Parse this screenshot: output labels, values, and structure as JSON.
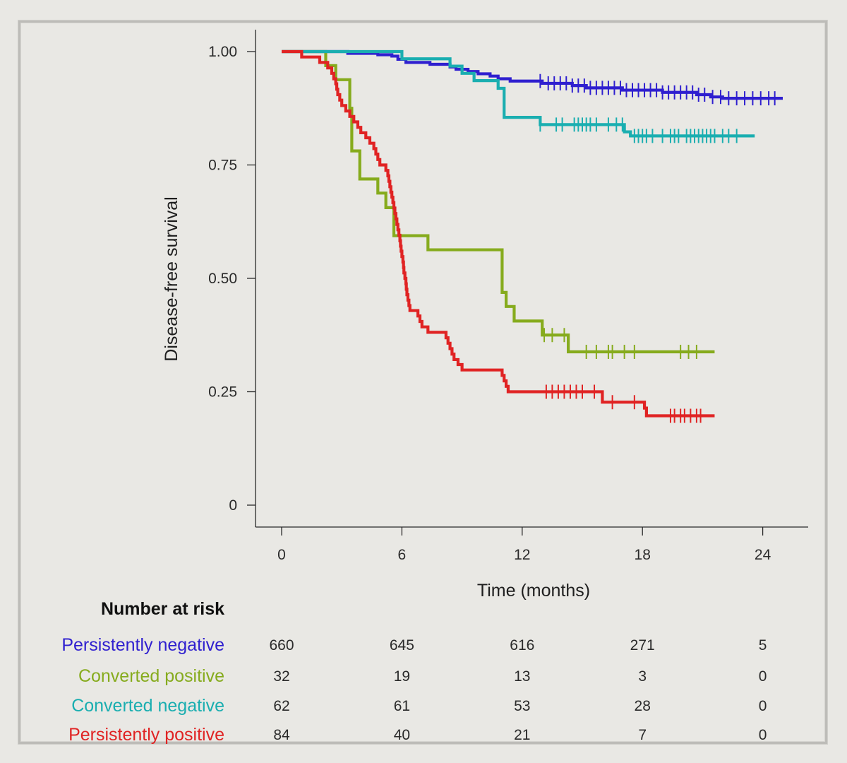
{
  "chart_data": {
    "type": "line",
    "step": true,
    "xlabel": "Time (months)",
    "ylabel": "Disease-free survival",
    "xlim": [
      -1,
      26
    ],
    "ylim": [
      -0.05,
      1.05
    ],
    "x_ticks": [
      0,
      6,
      12,
      18,
      24
    ],
    "x_tick_labels": [
      "0",
      "6",
      "12",
      "18",
      "24"
    ],
    "y_ticks": [
      0,
      0.25,
      0.5,
      0.75,
      1.0
    ],
    "y_tick_labels": [
      "0",
      "0.25",
      "0.50",
      "0.75",
      "1.00"
    ],
    "series": [
      {
        "name": "Persistently negative",
        "color": "#2f1fcf",
        "steps": [
          [
            0,
            1.0
          ],
          [
            3.3,
            0.996
          ],
          [
            4.8,
            0.993
          ],
          [
            5.5,
            0.99
          ],
          [
            5.8,
            0.983
          ],
          [
            6.2,
            0.976
          ],
          [
            7.4,
            0.972
          ],
          [
            8.4,
            0.966
          ],
          [
            8.7,
            0.961
          ],
          [
            9.3,
            0.956
          ],
          [
            9.8,
            0.951
          ],
          [
            10.4,
            0.946
          ],
          [
            10.8,
            0.94
          ],
          [
            11.4,
            0.935
          ],
          [
            13.0,
            0.93
          ],
          [
            14.5,
            0.925
          ],
          [
            15.2,
            0.92
          ],
          [
            17.0,
            0.915
          ],
          [
            19.0,
            0.91
          ],
          [
            20.7,
            0.905
          ],
          [
            21.4,
            0.9
          ],
          [
            22.0,
            0.897
          ],
          [
            25.0,
            0.897
          ]
        ],
        "censor_x": [
          12.9,
          13.3,
          13.6,
          13.9,
          14.2,
          14.5,
          14.8,
          15.1,
          15.4,
          15.7,
          16.0,
          16.3,
          16.6,
          16.9,
          17.2,
          17.5,
          17.8,
          18.1,
          18.4,
          18.7,
          19.0,
          19.3,
          19.6,
          19.9,
          20.2,
          20.5,
          20.8,
          21.1,
          21.5,
          21.9,
          22.3,
          22.7,
          23.1,
          23.5,
          23.9,
          24.3,
          24.6
        ]
      },
      {
        "name": "Converted positive",
        "color": "#86ab1d",
        "steps": [
          [
            0,
            1.0
          ],
          [
            2.2,
            0.969
          ],
          [
            2.7,
            0.938
          ],
          [
            3.4,
            0.875
          ],
          [
            3.5,
            0.781
          ],
          [
            3.9,
            0.719
          ],
          [
            4.8,
            0.688
          ],
          [
            5.2,
            0.656
          ],
          [
            5.6,
            0.594
          ],
          [
            7.3,
            0.563
          ],
          [
            11.0,
            0.469
          ],
          [
            11.2,
            0.438
          ],
          [
            11.6,
            0.406
          ],
          [
            13.0,
            0.375
          ],
          [
            14.3,
            0.338
          ],
          [
            21.6,
            0.338
          ]
        ],
        "censor_x": [
          13.1,
          13.5,
          14.1,
          15.2,
          15.7,
          16.3,
          16.5,
          17.1,
          17.6,
          19.9,
          20.3,
          20.7
        ]
      },
      {
        "name": "Converted negative",
        "color": "#1aaeb0",
        "steps": [
          [
            0,
            1.0
          ],
          [
            6.0,
            0.984
          ],
          [
            8.4,
            0.968
          ],
          [
            9.0,
            0.952
          ],
          [
            9.6,
            0.936
          ],
          [
            10.8,
            0.919
          ],
          [
            11.1,
            0.855
          ],
          [
            12.9,
            0.839
          ],
          [
            17.1,
            0.823
          ],
          [
            17.4,
            0.814
          ],
          [
            23.6,
            0.814
          ]
        ],
        "censor_x": [
          12.9,
          13.7,
          14.0,
          14.6,
          14.8,
          15.0,
          15.2,
          15.4,
          15.7,
          16.3,
          16.7,
          17.0,
          17.6,
          17.8,
          18.0,
          18.2,
          18.5,
          19.0,
          19.4,
          19.6,
          19.8,
          20.2,
          20.4,
          20.6,
          20.8,
          21.0,
          21.2,
          21.4,
          21.6,
          22.0,
          22.3,
          22.7
        ]
      },
      {
        "name": "Persistently positive",
        "color": "#e02323",
        "steps": [
          [
            0,
            1.0
          ],
          [
            1.0,
            0.988
          ],
          [
            1.9,
            0.976
          ],
          [
            2.3,
            0.964
          ],
          [
            2.5,
            0.952
          ],
          [
            2.6,
            0.94
          ],
          [
            2.7,
            0.929
          ],
          [
            2.75,
            0.917
          ],
          [
            2.8,
            0.905
          ],
          [
            2.9,
            0.893
          ],
          [
            3.0,
            0.881
          ],
          [
            3.2,
            0.869
          ],
          [
            3.4,
            0.857
          ],
          [
            3.6,
            0.845
          ],
          [
            3.8,
            0.833
          ],
          [
            3.95,
            0.821
          ],
          [
            4.2,
            0.81
          ],
          [
            4.4,
            0.798
          ],
          [
            4.6,
            0.786
          ],
          [
            4.7,
            0.774
          ],
          [
            4.8,
            0.762
          ],
          [
            4.9,
            0.75
          ],
          [
            5.2,
            0.738
          ],
          [
            5.3,
            0.726
          ],
          [
            5.35,
            0.714
          ],
          [
            5.4,
            0.702
          ],
          [
            5.45,
            0.69
          ],
          [
            5.5,
            0.679
          ],
          [
            5.55,
            0.667
          ],
          [
            5.6,
            0.655
          ],
          [
            5.65,
            0.643
          ],
          [
            5.7,
            0.631
          ],
          [
            5.75,
            0.619
          ],
          [
            5.8,
            0.607
          ],
          [
            5.85,
            0.595
          ],
          [
            5.9,
            0.583
          ],
          [
            5.93,
            0.571
          ],
          [
            5.96,
            0.56
          ],
          [
            6.0,
            0.548
          ],
          [
            6.05,
            0.536
          ],
          [
            6.08,
            0.524
          ],
          [
            6.1,
            0.512
          ],
          [
            6.15,
            0.5
          ],
          [
            6.2,
            0.488
          ],
          [
            6.22,
            0.476
          ],
          [
            6.25,
            0.464
          ],
          [
            6.3,
            0.452
          ],
          [
            6.35,
            0.44
          ],
          [
            6.4,
            0.429
          ],
          [
            6.8,
            0.417
          ],
          [
            6.9,
            0.405
          ],
          [
            7.0,
            0.393
          ],
          [
            7.3,
            0.381
          ],
          [
            8.2,
            0.369
          ],
          [
            8.3,
            0.357
          ],
          [
            8.4,
            0.345
          ],
          [
            8.5,
            0.333
          ],
          [
            8.6,
            0.321
          ],
          [
            8.8,
            0.31
          ],
          [
            9.0,
            0.298
          ],
          [
            11.0,
            0.286
          ],
          [
            11.1,
            0.274
          ],
          [
            11.2,
            0.262
          ],
          [
            11.3,
            0.25
          ],
          [
            16.0,
            0.227
          ],
          [
            18.1,
            0.214
          ],
          [
            18.2,
            0.197
          ],
          [
            21.6,
            0.197
          ]
        ],
        "censor_x": [
          13.2,
          13.5,
          13.8,
          14.1,
          14.4,
          14.7,
          15.0,
          15.6,
          16.5,
          17.6,
          19.4,
          19.6,
          19.9,
          20.1,
          20.4,
          20.7,
          20.9
        ]
      }
    ]
  },
  "risk_table": {
    "title": "Number at risk",
    "columns": [
      "0",
      "6",
      "12",
      "18",
      "24"
    ],
    "rows": [
      {
        "label": "Persistently negative",
        "color": "#2f1fcf",
        "values": [
          "660",
          "645",
          "616",
          "271",
          "5"
        ]
      },
      {
        "label": "Converted positive",
        "color": "#86ab1d",
        "values": [
          "32",
          "19",
          "13",
          "3",
          "0"
        ]
      },
      {
        "label": "Converted negative",
        "color": "#1aaeb0",
        "values": [
          "62",
          "61",
          "53",
          "28",
          "0"
        ]
      },
      {
        "label": "Persistently positive",
        "color": "#e02323",
        "values": [
          "84",
          "40",
          "21",
          "7",
          "0"
        ]
      }
    ]
  }
}
